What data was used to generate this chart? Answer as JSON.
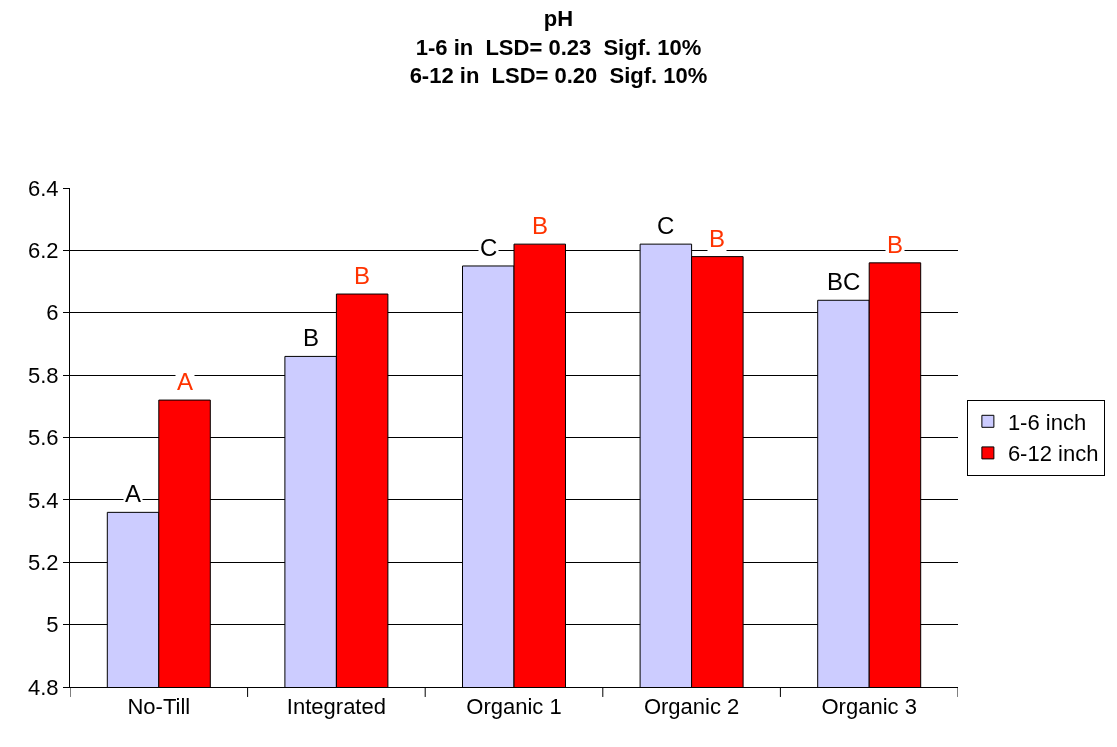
{
  "chart_data": {
    "type": "bar",
    "title": "pH\n1-6 in  LSD= 0.23  Sigf. 10%\n6-12 in  LSD= 0.20  Sigf. 10%",
    "categories": [
      "No-Till",
      "Integrated",
      "Organic 1",
      "Organic 2",
      "Organic 3"
    ],
    "series": [
      {
        "name": "1-6 inch",
        "color": "#ccccff",
        "values": [
          5.36,
          5.86,
          6.15,
          6.22,
          6.04
        ],
        "value_labels": [
          "A",
          "B",
          "C",
          "C",
          "BC"
        ]
      },
      {
        "name": "6-12 inch",
        "color": "#ff0000",
        "values": [
          5.72,
          6.06,
          6.22,
          6.18,
          6.16
        ],
        "value_labels": [
          "A",
          "B",
          "B",
          "B",
          "B"
        ]
      }
    ],
    "ylim": [
      4.8,
      6.4
    ],
    "yticks": [
      4.8,
      5,
      5.2,
      5.4,
      5.6,
      5.8,
      6,
      6.2,
      6.4
    ],
    "grid": "y",
    "legend": "right"
  }
}
